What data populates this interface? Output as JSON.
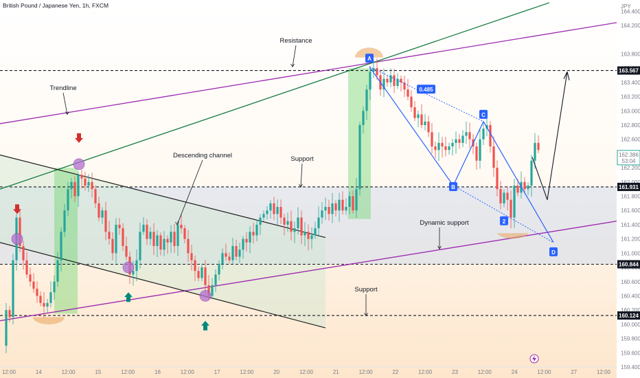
{
  "window": {
    "symbol_title": "British Pound / Japanese Yen, 1h, FXCM",
    "currency": "JPY"
  },
  "colors": {
    "bg_top": "#ffffff",
    "bg_bottom": "#fde9d3",
    "up_candle": "#26a69a",
    "down_candle": "#ef5350",
    "trend_purple": "#9c27b0",
    "trend_green": "#137a3e",
    "channel_line": "#1e1e1e",
    "channel_fill": "#cfe6d2",
    "zone_fill": "#c9d6ee",
    "breakout_fill": "#5fd35f",
    "harmonic_blue": "#2962ff",
    "marker_circle": "#b36fd1",
    "marker_arc": "#e7a45a",
    "arrow_down": "#d32f2f",
    "arrow_up": "#00897b"
  },
  "chart_data": {
    "type": "candlestick",
    "title": "British Pound / Japanese Yen, 1h, FXCM",
    "ylabel": "JPY",
    "ylim": [
      159.4,
      164.5
    ],
    "x_ticks": [
      "12:00",
      "14",
      "12:00",
      "15",
      "12:00",
      "16",
      "12:00",
      "17",
      "12:00",
      "20",
      "12:00",
      "21",
      "12:00",
      "22",
      "12:00",
      "23",
      "12:00",
      "24",
      "12:00",
      "27",
      "12:00"
    ],
    "y_ticks": [
      "164.400",
      "164.200",
      "163.800",
      "163.600",
      "163.400",
      "163.200",
      "163.000",
      "162.800",
      "162.600",
      "162.400",
      "162.200",
      "162.000",
      "161.800",
      "161.600",
      "161.400",
      "161.200",
      "161.000",
      "160.800",
      "160.600",
      "160.400",
      "160.200",
      "160.000",
      "159.800",
      "159.600",
      "159.400"
    ],
    "current_price": "162.386",
    "countdown": "53:04",
    "key_levels": [
      {
        "label": "Resistance",
        "price": "163.567"
      },
      {
        "label": "Support",
        "price": "161.931"
      },
      {
        "label": "Support",
        "price": "160.844"
      },
      {
        "label": "Support",
        "price": "160.124"
      }
    ],
    "annotations": [
      "Resistance",
      "Trendline",
      "Descending channel",
      "Support",
      "Dynamic support",
      "Support"
    ],
    "pattern": {
      "points": [
        "A",
        "B",
        "C",
        "D"
      ],
      "retracement": "0.485",
      "wave_label": "2"
    },
    "price_path": [
      [
        0,
        159.7
      ],
      [
        5,
        160.2
      ],
      [
        10,
        160.1
      ],
      [
        15,
        160.9
      ],
      [
        20,
        161.5
      ],
      [
        25,
        161.1
      ],
      [
        30,
        160.9
      ],
      [
        35,
        160.7
      ],
      [
        40,
        160.6
      ],
      [
        45,
        160.5
      ],
      [
        50,
        160.4
      ],
      [
        55,
        160.3
      ],
      [
        60,
        160.25
      ],
      [
        65,
        160.3
      ],
      [
        70,
        160.45
      ],
      [
        75,
        160.6
      ],
      [
        80,
        160.9
      ],
      [
        85,
        161.3
      ],
      [
        90,
        161.6
      ],
      [
        95,
        161.9
      ],
      [
        100,
        162.0
      ],
      [
        105,
        161.8
      ],
      [
        110,
        162.1
      ],
      [
        115,
        162.05
      ],
      [
        120,
        161.95
      ],
      [
        125,
        162.0
      ],
      [
        130,
        161.9
      ],
      [
        135,
        161.7
      ],
      [
        140,
        161.5
      ],
      [
        145,
        161.6
      ],
      [
        150,
        161.3
      ],
      [
        155,
        161.2
      ],
      [
        160,
        161.0
      ],
      [
        165,
        161.4
      ],
      [
        170,
        161.35
      ],
      [
        175,
        161.1
      ],
      [
        180,
        160.95
      ],
      [
        185,
        160.7
      ],
      [
        190,
        160.75
      ],
      [
        195,
        160.9
      ],
      [
        200,
        161.3
      ],
      [
        205,
        161.4
      ],
      [
        210,
        161.2
      ],
      [
        215,
        161.3
      ],
      [
        220,
        161.1
      ],
      [
        225,
        161.25
      ],
      [
        230,
        161.05
      ],
      [
        235,
        161.2
      ],
      [
        240,
        161.15
      ],
      [
        245,
        161.3
      ],
      [
        250,
        161.1
      ],
      [
        255,
        161.4
      ],
      [
        260,
        161.35
      ],
      [
        265,
        161.2
      ],
      [
        270,
        161.0
      ],
      [
        275,
        160.9
      ],
      [
        280,
        160.75
      ],
      [
        285,
        160.65
      ],
      [
        290,
        160.8
      ],
      [
        295,
        160.55
      ],
      [
        300,
        160.4
      ],
      [
        305,
        160.55
      ],
      [
        310,
        160.7
      ],
      [
        315,
        160.85
      ],
      [
        320,
        161.0
      ],
      [
        325,
        160.95
      ],
      [
        330,
        160.9
      ],
      [
        335,
        161.1
      ],
      [
        340,
        160.95
      ],
      [
        345,
        161.05
      ],
      [
        350,
        161.2
      ],
      [
        355,
        161.15
      ],
      [
        360,
        161.3
      ],
      [
        365,
        161.25
      ],
      [
        370,
        161.4
      ],
      [
        375,
        161.5
      ],
      [
        380,
        161.55
      ],
      [
        385,
        161.6
      ],
      [
        390,
        161.7
      ],
      [
        395,
        161.55
      ],
      [
        400,
        161.65
      ],
      [
        405,
        161.5
      ],
      [
        410,
        161.4
      ],
      [
        415,
        161.45
      ],
      [
        420,
        161.3
      ],
      [
        425,
        161.35
      ],
      [
        430,
        161.5
      ],
      [
        435,
        161.25
      ],
      [
        440,
        161.3
      ],
      [
        445,
        161.2
      ],
      [
        450,
        161.25
      ],
      [
        455,
        161.35
      ],
      [
        460,
        161.5
      ],
      [
        465,
        161.6
      ],
      [
        470,
        161.65
      ],
      [
        475,
        161.55
      ],
      [
        480,
        161.7
      ],
      [
        485,
        161.6
      ],
      [
        490,
        161.75
      ],
      [
        495,
        161.6
      ],
      [
        500,
        161.65
      ],
      [
        505,
        161.8
      ],
      [
        510,
        161.6
      ],
      [
        515,
        161.9
      ],
      [
        520,
        162.8
      ],
      [
        525,
        163.0
      ],
      [
        530,
        163.3
      ],
      [
        535,
        163.55
      ],
      [
        540,
        163.6
      ],
      [
        545,
        163.5
      ],
      [
        550,
        163.3
      ],
      [
        555,
        163.45
      ],
      [
        560,
        163.4
      ],
      [
        565,
        163.5
      ],
      [
        570,
        163.35
      ],
      [
        575,
        163.45
      ],
      [
        580,
        163.4
      ],
      [
        585,
        163.3
      ],
      [
        590,
        163.2
      ],
      [
        595,
        163.05
      ],
      [
        600,
        162.9
      ],
      [
        605,
        162.95
      ],
      [
        610,
        162.8
      ],
      [
        615,
        162.85
      ],
      [
        620,
        162.7
      ],
      [
        625,
        162.5
      ],
      [
        630,
        162.45
      ],
      [
        635,
        162.55
      ],
      [
        640,
        162.5
      ],
      [
        645,
        162.45
      ],
      [
        650,
        162.5
      ],
      [
        655,
        162.55
      ],
      [
        660,
        162.6
      ],
      [
        665,
        162.55
      ],
      [
        670,
        162.65
      ],
      [
        675,
        162.7
      ],
      [
        680,
        162.6
      ],
      [
        685,
        162.5
      ],
      [
        690,
        162.3
      ],
      [
        695,
        162.6
      ],
      [
        700,
        162.75
      ],
      [
        705,
        162.8
      ],
      [
        710,
        162.5
      ],
      [
        715,
        162.2
      ],
      [
        720,
        161.9
      ],
      [
        725,
        161.7
      ],
      [
        730,
        161.85
      ],
      [
        735,
        161.75
      ],
      [
        740,
        161.5
      ],
      [
        745,
        161.95
      ],
      [
        750,
        161.85
      ],
      [
        755,
        162.0
      ],
      [
        760,
        161.9
      ],
      [
        765,
        161.95
      ],
      [
        770,
        162.3
      ],
      [
        775,
        162.55
      ],
      [
        780,
        162.45
      ]
    ]
  }
}
